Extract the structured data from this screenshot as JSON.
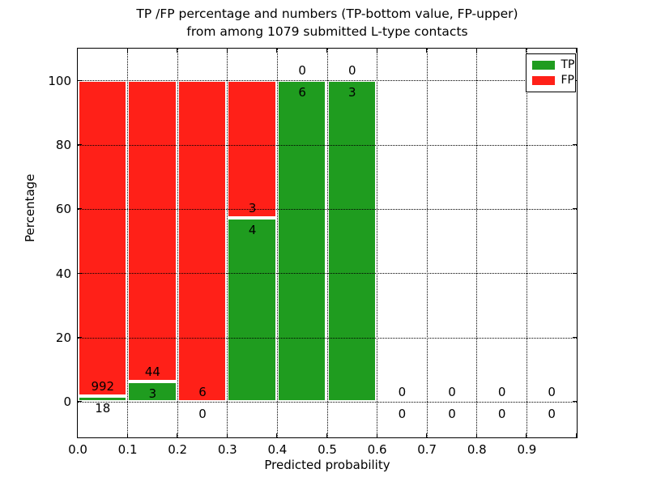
{
  "title": {
    "line1": "TP /FP percentage and numbers (TP-bottom value, FP-upper)",
    "line2": "from among 1079 submitted L-type contacts"
  },
  "axes": {
    "xlabel": "Predicted probability",
    "ylabel": "Percentage"
  },
  "legend": {
    "tp": "TP",
    "fp": "FP"
  },
  "colors": {
    "tp_green": "#1f9c1f",
    "fp_red": "#ff2018",
    "grid": "#000000"
  },
  "chart_data": {
    "type": "bar",
    "stacked": true,
    "percent_normalized": true,
    "title": "TP /FP percentage and numbers (TP-bottom value, FP-upper) from among 1079 submitted L-type contacts",
    "xlabel": "Predicted probability",
    "ylabel": "Percentage",
    "total_contacts": 1079,
    "bin_width": 0.1,
    "bin_left_edges": [
      0.0,
      0.1,
      0.2,
      0.3,
      0.4,
      0.5,
      0.6,
      0.7,
      0.8,
      0.9
    ],
    "series": [
      {
        "name": "TP",
        "color": "#1f9c1f",
        "counts": [
          18,
          3,
          0,
          4,
          6,
          3,
          0,
          0,
          0,
          0
        ]
      },
      {
        "name": "FP",
        "color": "#ff2018",
        "counts": [
          992,
          44,
          6,
          3,
          0,
          0,
          0,
          0,
          0,
          0
        ]
      }
    ],
    "tp_percent_heights": [
      1.78,
      6.38,
      0,
      57.14,
      100,
      100,
      0,
      0,
      0,
      0
    ],
    "x_tick_labels": [
      "0.0",
      "0.1",
      "0.2",
      "0.3",
      "0.4",
      "0.5",
      "0.6",
      "0.7",
      "0.8",
      "0.9"
    ],
    "y_tick_values": [
      0,
      20,
      40,
      60,
      80,
      100
    ],
    "xlim": [
      0.0,
      1.0
    ],
    "ylim": [
      -11,
      110
    ],
    "grid": "dotted, drawn above bars",
    "legend_position": "upper-right"
  }
}
